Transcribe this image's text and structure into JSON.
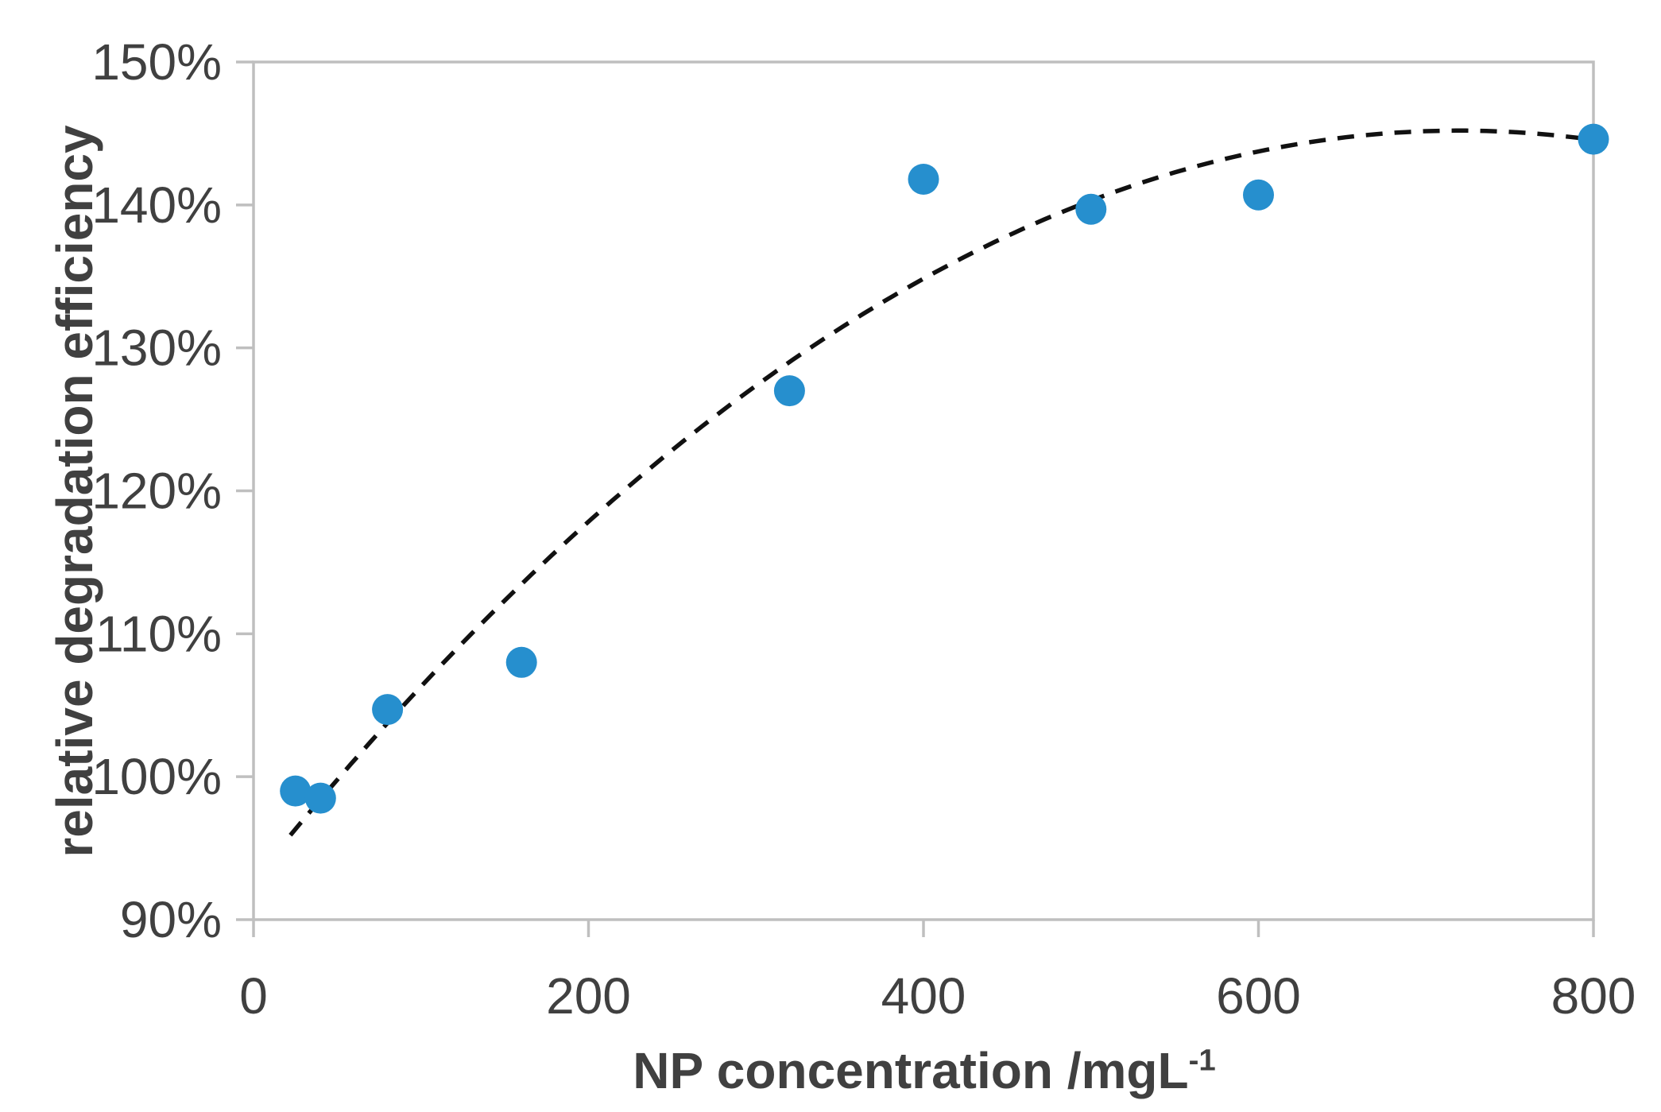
{
  "chart_data": {
    "type": "scatter",
    "title": "",
    "ylabel": "relative degradation efficiency",
    "xlabel_main": "NP concentration /mgL",
    "xlabel_sup": "-1",
    "xlim": [
      0,
      800
    ],
    "ylim": [
      90,
      150
    ],
    "x_ticks": [
      0,
      200,
      400,
      600,
      800
    ],
    "y_ticks": [
      90,
      100,
      110,
      120,
      130,
      140,
      150
    ],
    "y_tick_suffix": "%",
    "grid": "none",
    "legend": "none",
    "plot_border": "closed light-gray box with outward ticks",
    "series": [
      {
        "name": "relative degradation efficiency",
        "marker": "circle",
        "color": "#268FCE",
        "points": [
          {
            "x": 25,
            "y": 99.0
          },
          {
            "x": 40,
            "y": 98.5
          },
          {
            "x": 80,
            "y": 104.7
          },
          {
            "x": 160,
            "y": 108.0
          },
          {
            "x": 320,
            "y": 127.0
          },
          {
            "x": 400,
            "y": 141.8
          },
          {
            "x": 500,
            "y": 139.7
          },
          {
            "x": 600,
            "y": 140.7
          },
          {
            "x": 800,
            "y": 144.6
          }
        ]
      }
    ],
    "trendline": {
      "type": "polynomial",
      "degree": 2,
      "style": "dashed",
      "color": "#111111",
      "vertex_x": 720,
      "vertex_y": 145.2,
      "a": -0.00010117,
      "x_start": 22,
      "x_end": 800
    },
    "colors": {
      "marker": "#268FCE",
      "axis_line": "#BFBFBF",
      "tick_label": "#404040",
      "axis_title": "#404040",
      "trendline": "#111111"
    }
  }
}
